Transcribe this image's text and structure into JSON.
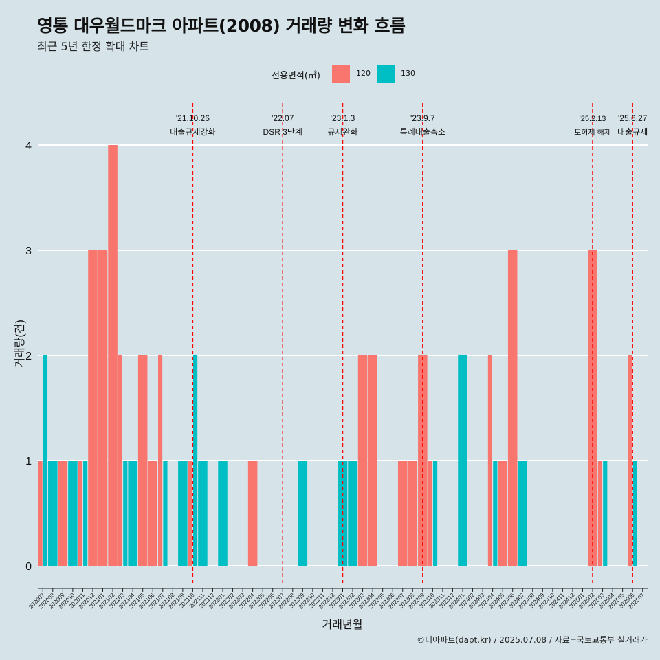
{
  "header": {
    "title": "영통 대우월드마크 아파트(2008) 거래량 변화 흐름",
    "subtitle": "최근 5년 한정 확대 차트"
  },
  "legend": {
    "title": "전용면적(㎡)",
    "items": [
      {
        "label": "120",
        "color": "#F8766D"
      },
      {
        "label": "130",
        "color": "#00BFC4"
      }
    ]
  },
  "caption": "©디아파트(dapt.kr) / 2025.07.08 / 자료=국토교통부 실거래가",
  "chart_data": {
    "type": "bar",
    "xlabel": "거래년월",
    "ylabel": "거래량(건)",
    "ylim": [
      0,
      4.4
    ],
    "yticks": [
      0,
      1,
      2,
      3,
      4
    ],
    "grid": "horizontal",
    "legend_position": "top",
    "categories": [
      "202007",
      "202008",
      "202009",
      "202010",
      "202011",
      "202012",
      "202101",
      "202102",
      "202103",
      "202104",
      "202105",
      "202106",
      "202107",
      "202108",
      "202109",
      "202110",
      "202111",
      "202112",
      "202201",
      "202202",
      "202203",
      "202204",
      "202205",
      "202206",
      "202207",
      "202208",
      "202209",
      "202210",
      "202211",
      "202212",
      "202301",
      "202302",
      "202303",
      "202304",
      "202305",
      "202306",
      "202307",
      "202308",
      "202309",
      "202310",
      "202311",
      "202312",
      "202401",
      "202402",
      "202403",
      "202404",
      "202405",
      "202406",
      "202407",
      "202408",
      "202409",
      "202410",
      "202411",
      "202412",
      "202501",
      "202502",
      "202503",
      "202504",
      "202505",
      "202506",
      "202507"
    ],
    "series": [
      {
        "name": "120",
        "color": "#F8766D",
        "values": [
          1,
          0,
          1,
          0,
          1,
          3,
          3,
          4,
          2,
          0,
          2,
          1,
          2,
          0,
          0,
          1,
          0,
          0,
          0,
          0,
          0,
          1,
          0,
          0,
          0,
          0,
          0,
          0,
          0,
          0,
          0,
          0,
          2,
          2,
          0,
          0,
          1,
          1,
          2,
          1,
          0,
          0,
          0,
          0,
          0,
          2,
          1,
          3,
          0,
          0,
          0,
          0,
          0,
          0,
          0,
          3,
          1,
          0,
          0,
          2,
          0
        ]
      },
      {
        "name": "130",
        "color": "#00BFC4",
        "values": [
          2,
          1,
          0,
          1,
          1,
          0,
          0,
          0,
          1,
          1,
          0,
          0,
          1,
          0,
          1,
          2,
          1,
          0,
          1,
          0,
          0,
          0,
          0,
          0,
          0,
          0,
          1,
          0,
          0,
          0,
          1,
          1,
          0,
          0,
          0,
          0,
          0,
          0,
          0,
          1,
          0,
          0,
          2,
          0,
          0,
          1,
          0,
          0,
          1,
          0,
          0,
          0,
          0,
          0,
          0,
          0,
          1,
          0,
          0,
          1,
          0
        ]
      }
    ],
    "annotations": [
      {
        "date": "'21.10.26",
        "label": "대출규제강화",
        "at": "202110"
      },
      {
        "date": "'22.07",
        "label": "DSR 3단계",
        "at": "202207"
      },
      {
        "date": "'23.1.3",
        "label": "규제완화",
        "at": "202301"
      },
      {
        "date": "'23.9.7",
        "label": "특례대출축소",
        "at": "202309"
      },
      {
        "date": "'25.2.13",
        "label": "토허제 해제",
        "at": "202502"
      },
      {
        "date": "'25.6.27",
        "label": "대출규제",
        "at": "202506"
      }
    ],
    "annotation_line_color": "#FF0000"
  }
}
